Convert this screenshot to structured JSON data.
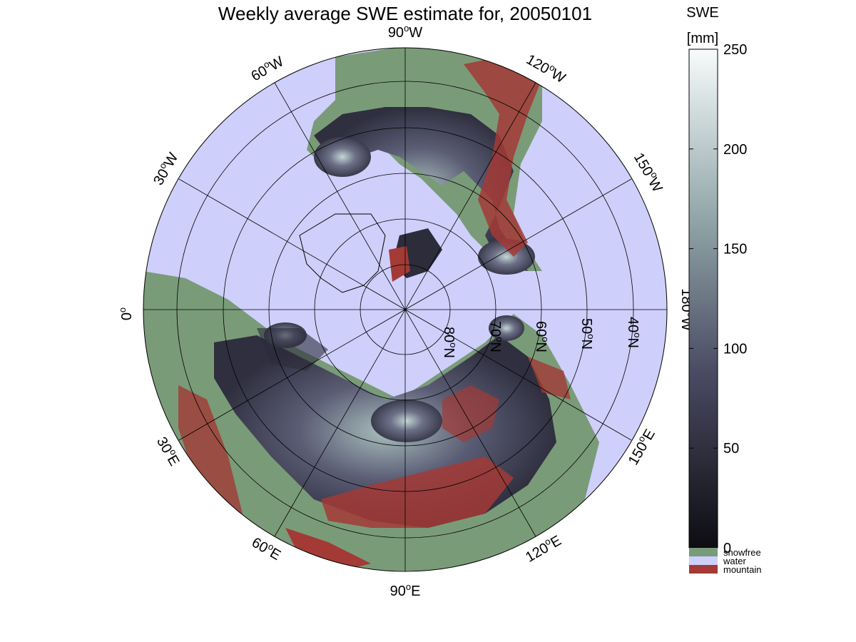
{
  "title": "Weekly average SWE estimate for, 20050101",
  "colorbar": {
    "label_line1": "SWE",
    "label_line2": "[mm]",
    "ticks": [
      "0",
      "50",
      "100",
      "150",
      "200",
      "250"
    ],
    "min": 0,
    "max": 250,
    "colors": {
      "low": "#0d0d12",
      "mid": "#4a4a62",
      "high_mid": "#8ea3a6",
      "high": "#f7fbfb"
    }
  },
  "legend": [
    {
      "label": "snowfree",
      "color": "#7a9b78"
    },
    {
      "label": "water",
      "color": "#cfcffb"
    },
    {
      "label": "mountain",
      "color": "#a33a36"
    }
  ],
  "map": {
    "projection": "north polar stereographic",
    "longitude_labels": [
      {
        "deg": "90",
        "hemi": "W"
      },
      {
        "deg": "120",
        "hemi": "W"
      },
      {
        "deg": "150",
        "hemi": "W"
      },
      {
        "deg": "180",
        "hemi": "W"
      },
      {
        "deg": "150",
        "hemi": "E"
      },
      {
        "deg": "120",
        "hemi": "E"
      },
      {
        "deg": "90",
        "hemi": "E"
      },
      {
        "deg": "60",
        "hemi": "E"
      },
      {
        "deg": "30",
        "hemi": "E"
      },
      {
        "deg": "0",
        "hemi": ""
      },
      {
        "deg": "30",
        "hemi": "W"
      },
      {
        "deg": "60",
        "hemi": "W"
      }
    ],
    "latitude_labels": [
      {
        "deg": "80",
        "hemi": "N"
      },
      {
        "deg": "70",
        "hemi": "N"
      },
      {
        "deg": "60",
        "hemi": "N"
      },
      {
        "deg": "50",
        "hemi": "N"
      },
      {
        "deg": "40",
        "hemi": "N"
      }
    ],
    "ocean_color": "#cfcffb",
    "snow_dark_color": "#2c2c3a",
    "snow_light_color": "#b7c9c8"
  }
}
